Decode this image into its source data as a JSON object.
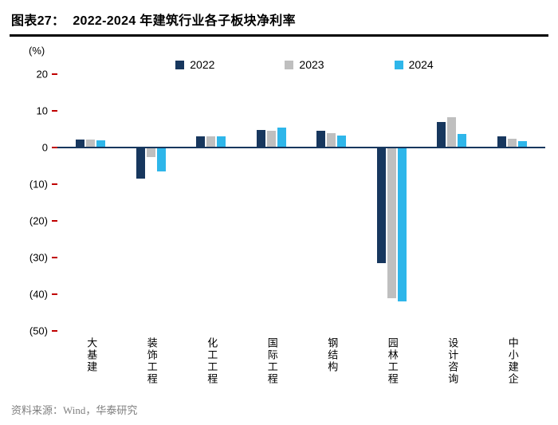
{
  "header": {
    "prefix": "图表27：",
    "title": "2022-2024 年建筑行业各子板块净利率"
  },
  "footer": {
    "source": "资料来源：Wind，华泰研究"
  },
  "chart_data": {
    "type": "bar",
    "title": "2022-2024 年建筑行业各子板块净利率",
    "xlabel": "",
    "ylabel": "(%)",
    "ylim": [
      -50,
      20
    ],
    "grid": false,
    "legend_position": "top",
    "ytick_values": [
      20,
      10,
      0,
      -10,
      -20,
      -30,
      -40,
      -50
    ],
    "ytick_labels": [
      "20",
      "10",
      "0",
      "(10)",
      "(20)",
      "(30)",
      "(40)",
      "(50)"
    ],
    "categories": [
      "大基建",
      "装饰工程",
      "化工工程",
      "国际工程",
      "钢结构",
      "园林工程",
      "设计咨询",
      "中小建企"
    ],
    "series": [
      {
        "name": "2022",
        "color": "#17375e",
        "values": [
          2.2,
          -8.5,
          3.0,
          4.8,
          4.6,
          -31.5,
          7.0,
          3.0
        ]
      },
      {
        "name": "2023",
        "color": "#bfbfbf",
        "values": [
          2.2,
          -2.5,
          3.0,
          4.6,
          4.0,
          -41.0,
          8.2,
          2.5
        ]
      },
      {
        "name": "2024",
        "color": "#2eb6ea",
        "values": [
          2.0,
          -6.5,
          3.0,
          5.5,
          3.3,
          -42.0,
          3.8,
          1.8
        ]
      }
    ],
    "colors": {
      "tick_mark": "#c00000",
      "zero_line": "#17375e",
      "title_rule": "#000000",
      "source_text": "#7f7f7f"
    }
  }
}
